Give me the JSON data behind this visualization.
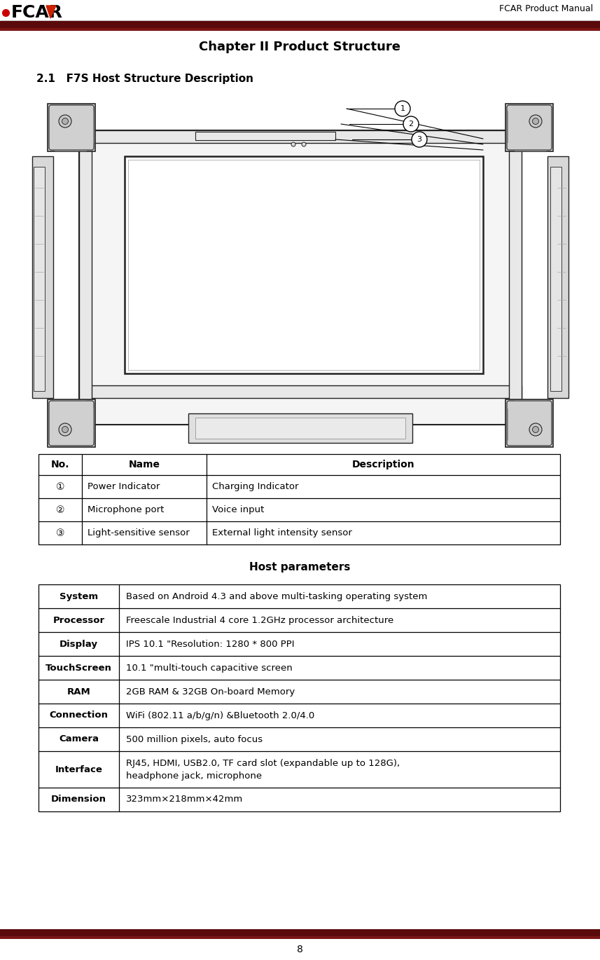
{
  "page_title_right": "FCAR Product Manual",
  "chapter_title": "Chapter II Product Structure",
  "section_title": "2.1   F7S Host Structure Description",
  "table1_headers": [
    "No.",
    "Name",
    "Description"
  ],
  "table1_rows": [
    [
      "①",
      "Power Indicator",
      "Charging Indicator"
    ],
    [
      "②",
      "Microphone port",
      "Voice input"
    ],
    [
      "③",
      "Light-sensitive sensor",
      "External light intensity sensor"
    ]
  ],
  "host_params_title": "Host parameters",
  "table2_rows": [
    [
      "System",
      "Based on Android 4.3 and above multi-tasking operating system"
    ],
    [
      "Processor",
      "Freescale Industrial 4 core 1.2GHz processor architecture"
    ],
    [
      "Display",
      "IPS 10.1 \"Resolution: 1280 * 800 PPI"
    ],
    [
      "TouchScreen",
      "10.1 \"multi-touch capacitive screen"
    ],
    [
      "RAM",
      "2GB RAM & 32GB On-board Memory"
    ],
    [
      "Connection",
      "WiFi (802.11 a/b/g/n) &Bluetooth 2.0/4.0"
    ],
    [
      "Camera",
      "500 million pixels, auto focus"
    ],
    [
      "Interface",
      "RJ45, HDMI, USB2.0, TF card slot (expandable up to 128G),\nheadphone jack, microphone"
    ],
    [
      "Dimension",
      "323mm×218mm×42mm"
    ]
  ],
  "page_number": "8",
  "bar_dark": "#5a0a0a",
  "bar_mid": "#7a1515",
  "bar_light": "#9b2020",
  "lc": "#333333",
  "lw": 1.0
}
